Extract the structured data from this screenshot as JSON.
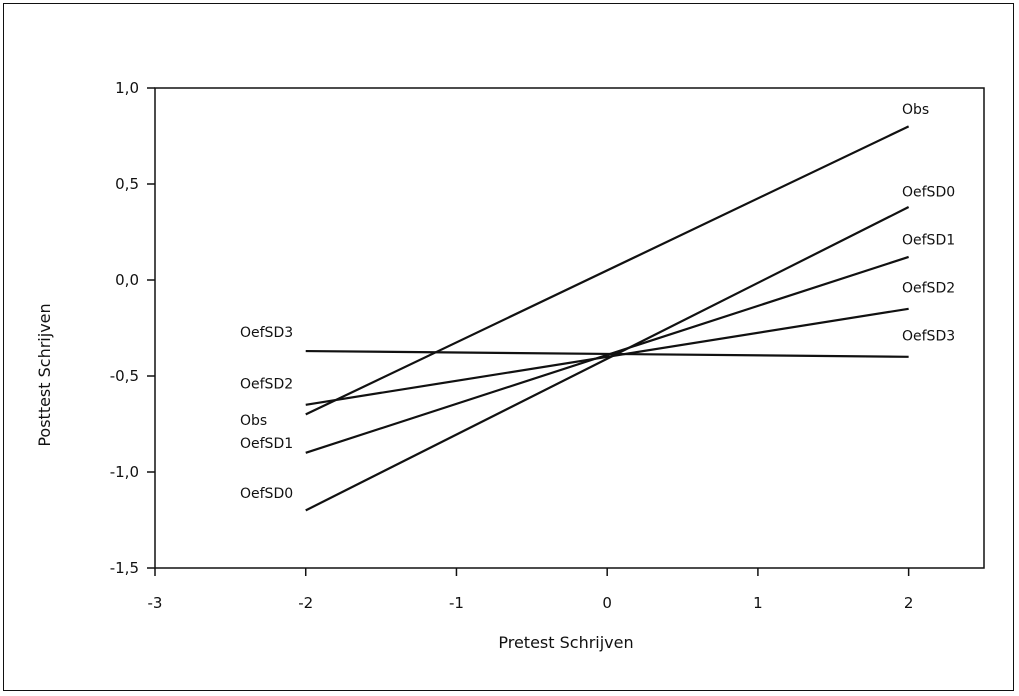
{
  "chart_data": {
    "type": "line",
    "title": "",
    "xlabel": "Pretest Schrijven",
    "ylabel": "Posttest Schrijven",
    "xlim": [
      -3,
      2.5
    ],
    "ylim": [
      -1.5,
      1.0
    ],
    "xticks": [
      -3,
      -2,
      -1,
      0,
      1,
      2
    ],
    "xtick_labels": [
      "-3",
      "-2",
      "-1",
      "0",
      "1",
      "2"
    ],
    "yticks": [
      1.0,
      0.5,
      0.0,
      -0.5,
      -1.0,
      -1.5
    ],
    "ytick_labels": [
      "1,0",
      "0,5",
      "0,0",
      "-0,5",
      "-1,0",
      "-1,5"
    ],
    "grid": false,
    "legend": "none",
    "line_color": "#111111",
    "series": [
      {
        "name": "Obs",
        "x": [
          -2,
          2
        ],
        "y": [
          -0.7,
          0.8
        ]
      },
      {
        "name": "OefSD0",
        "x": [
          -2,
          2
        ],
        "y": [
          -1.2,
          0.38
        ]
      },
      {
        "name": "OefSD1",
        "x": [
          -2,
          2
        ],
        "y": [
          -0.9,
          0.12
        ]
      },
      {
        "name": "OefSD2",
        "x": [
          -2,
          2
        ],
        "y": [
          -0.65,
          -0.15
        ]
      },
      {
        "name": "OefSD3",
        "x": [
          -2,
          2
        ],
        "y": [
          -0.37,
          -0.4
        ]
      }
    ],
    "left_labels": [
      {
        "text": "OefSD3",
        "y": -0.27
      },
      {
        "text": "OefSD2",
        "y": -0.54
      },
      {
        "text": "Obs",
        "y": -0.73
      },
      {
        "text": "OefSD1",
        "y": -0.85
      },
      {
        "text": "OefSD0",
        "y": -1.11
      }
    ],
    "right_labels": [
      {
        "text": "Obs",
        "y": 0.89
      },
      {
        "text": "OefSD0",
        "y": 0.46
      },
      {
        "text": "OefSD1",
        "y": 0.21
      },
      {
        "text": "OefSD2",
        "y": -0.04
      },
      {
        "text": "OefSD3",
        "y": -0.29
      }
    ]
  }
}
